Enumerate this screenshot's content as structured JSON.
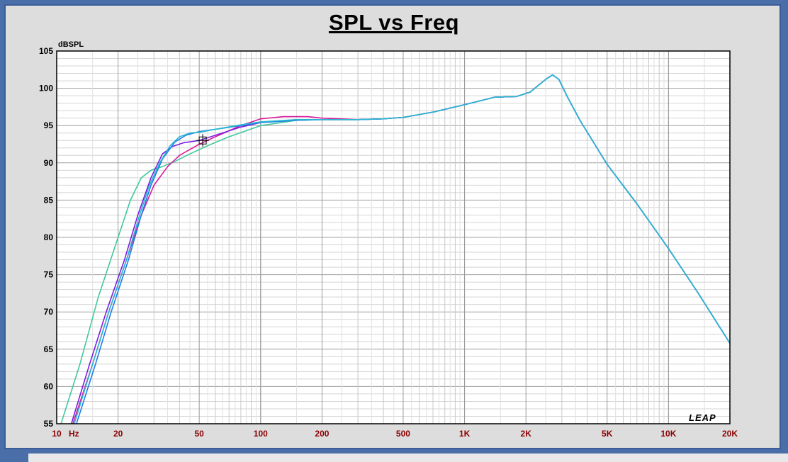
{
  "window": {
    "brand_label": "LEAP"
  },
  "chart_data": {
    "type": "line",
    "title": "SPL vs Freq",
    "ylabel": "dBSPL",
    "xlabel": "",
    "xscale": "log",
    "xlim": [
      10,
      20000
    ],
    "ylim": [
      55,
      105
    ],
    "grid": true,
    "y_ticks": [
      "105",
      "100",
      "95",
      "90",
      "85",
      "80",
      "75",
      "70",
      "65",
      "60",
      "55"
    ],
    "x_ticks": [
      {
        "value": 10,
        "label": "10"
      },
      {
        "value": 20,
        "label": "20"
      },
      {
        "value": 50,
        "label": "50"
      },
      {
        "value": 100,
        "label": "100"
      },
      {
        "value": 200,
        "label": "200"
      },
      {
        "value": 500,
        "label": "500"
      },
      {
        "value": 1000,
        "label": "1K"
      },
      {
        "value": 2000,
        "label": "2K"
      },
      {
        "value": 5000,
        "label": "5K"
      },
      {
        "value": 10000,
        "label": "10K"
      },
      {
        "value": 20000,
        "label": "20K"
      }
    ],
    "x_unit_label": "Hz",
    "series": [
      {
        "color": "#40c8a0",
        "points": [
          [
            10.5,
            55
          ],
          [
            13,
            63
          ],
          [
            16,
            72
          ],
          [
            20,
            80
          ],
          [
            23,
            85
          ],
          [
            26,
            88
          ],
          [
            29,
            89
          ],
          [
            33,
            89.5
          ],
          [
            38,
            90.2
          ],
          [
            45,
            91.2
          ],
          [
            55,
            92.3
          ],
          [
            70,
            93.5
          ],
          [
            100,
            95
          ],
          [
            150,
            95.7
          ],
          [
            200,
            95.8
          ],
          [
            300,
            95.8
          ],
          [
            400,
            95.9
          ],
          [
            500,
            96.1
          ],
          [
            700,
            96.8
          ],
          [
            1000,
            97.8
          ],
          [
            1400,
            98.8
          ],
          [
            1800,
            98.9
          ],
          [
            2100,
            99.5
          ],
          [
            2500,
            101.2
          ],
          [
            2700,
            101.8
          ],
          [
            2900,
            101.2
          ],
          [
            3200,
            98.8
          ],
          [
            3700,
            95.6
          ],
          [
            5000,
            89.8
          ],
          [
            7000,
            84.5
          ],
          [
            10000,
            78.5
          ],
          [
            14000,
            72.5
          ],
          [
            20000,
            65.8
          ]
        ]
      },
      {
        "color": "#d81b9c",
        "points": [
          [
            12,
            55
          ],
          [
            15,
            63
          ],
          [
            18,
            70
          ],
          [
            22,
            77
          ],
          [
            26,
            83
          ],
          [
            30,
            87
          ],
          [
            35,
            89.5
          ],
          [
            40,
            91
          ],
          [
            50,
            92.5
          ],
          [
            60,
            93.5
          ],
          [
            80,
            95
          ],
          [
            100,
            95.9
          ],
          [
            130,
            96.2
          ],
          [
            170,
            96.2
          ],
          [
            200,
            96
          ],
          [
            300,
            95.8
          ],
          [
            400,
            95.9
          ],
          [
            500,
            96.1
          ],
          [
            700,
            96.8
          ],
          [
            1000,
            97.8
          ],
          [
            1400,
            98.8
          ],
          [
            1800,
            98.9
          ],
          [
            2100,
            99.5
          ],
          [
            2500,
            101.2
          ],
          [
            2700,
            101.8
          ],
          [
            2900,
            101.2
          ],
          [
            3200,
            98.8
          ],
          [
            3700,
            95.6
          ],
          [
            5000,
            89.8
          ],
          [
            7000,
            84.5
          ],
          [
            10000,
            78.5
          ],
          [
            14000,
            72.5
          ],
          [
            20000,
            65.8
          ]
        ]
      },
      {
        "color": "#7a1ee0",
        "points": [
          [
            11.8,
            55
          ],
          [
            14.5,
            63
          ],
          [
            17.5,
            70
          ],
          [
            21.5,
            77
          ],
          [
            25,
            83
          ],
          [
            29,
            88
          ],
          [
            33,
            91.2
          ],
          [
            37,
            92.2
          ],
          [
            42,
            92.7
          ],
          [
            50,
            93
          ],
          [
            60,
            93.7
          ],
          [
            80,
            94.8
          ],
          [
            100,
            95.4
          ],
          [
            150,
            95.8
          ],
          [
            200,
            95.8
          ],
          [
            300,
            95.8
          ],
          [
            400,
            95.9
          ],
          [
            500,
            96.1
          ],
          [
            700,
            96.8
          ],
          [
            1000,
            97.8
          ],
          [
            1400,
            98.8
          ],
          [
            1800,
            98.9
          ],
          [
            2100,
            99.5
          ],
          [
            2500,
            101.2
          ],
          [
            2700,
            101.8
          ],
          [
            2900,
            101.2
          ],
          [
            3200,
            98.8
          ],
          [
            3700,
            95.6
          ],
          [
            5000,
            89.8
          ],
          [
            7000,
            84.5
          ],
          [
            10000,
            78.5
          ],
          [
            14000,
            72.5
          ],
          [
            20000,
            65.8
          ]
        ]
      },
      {
        "color": "#1e7ee8",
        "points": [
          [
            12.5,
            55
          ],
          [
            15.5,
            63
          ],
          [
            18.5,
            70
          ],
          [
            22.5,
            77
          ],
          [
            26,
            83
          ],
          [
            29,
            87
          ],
          [
            33,
            90.5
          ],
          [
            38,
            92.8
          ],
          [
            43,
            93.7
          ],
          [
            50,
            94.2
          ],
          [
            60,
            94.5
          ],
          [
            80,
            95
          ],
          [
            100,
            95.4
          ],
          [
            150,
            95.7
          ],
          [
            200,
            95.8
          ],
          [
            300,
            95.8
          ],
          [
            400,
            95.9
          ],
          [
            500,
            96.1
          ],
          [
            700,
            96.8
          ],
          [
            1000,
            97.8
          ],
          [
            1400,
            98.8
          ],
          [
            1800,
            98.9
          ],
          [
            2100,
            99.5
          ],
          [
            2500,
            101.2
          ],
          [
            2700,
            101.8
          ],
          [
            2900,
            101.2
          ],
          [
            3200,
            98.8
          ],
          [
            3700,
            95.6
          ],
          [
            5000,
            89.8
          ],
          [
            7000,
            84.5
          ],
          [
            10000,
            78.5
          ],
          [
            14000,
            72.5
          ],
          [
            20000,
            65.8
          ]
        ]
      },
      {
        "color": "#28b8d0",
        "points": [
          [
            12.2,
            55
          ],
          [
            15,
            63
          ],
          [
            18,
            70
          ],
          [
            22,
            77
          ],
          [
            25.5,
            83
          ],
          [
            28.5,
            87
          ],
          [
            32,
            90
          ],
          [
            36,
            92.3
          ],
          [
            40,
            93.5
          ],
          [
            45,
            94
          ],
          [
            50,
            94.1
          ],
          [
            60,
            94.5
          ],
          [
            80,
            95.1
          ],
          [
            100,
            95.5
          ],
          [
            150,
            95.8
          ],
          [
            200,
            95.8
          ],
          [
            300,
            95.8
          ],
          [
            400,
            95.9
          ],
          [
            500,
            96.1
          ],
          [
            700,
            96.8
          ],
          [
            1000,
            97.8
          ],
          [
            1400,
            98.8
          ],
          [
            1800,
            98.9
          ],
          [
            2100,
            99.5
          ],
          [
            2500,
            101.2
          ],
          [
            2700,
            101.8
          ],
          [
            2900,
            101.2
          ],
          [
            3200,
            98.8
          ],
          [
            3700,
            95.6
          ],
          [
            5000,
            89.8
          ],
          [
            7000,
            84.5
          ],
          [
            10000,
            78.5
          ],
          [
            14000,
            72.5
          ],
          [
            20000,
            65.8
          ]
        ]
      }
    ],
    "marker": {
      "x": 52,
      "y": 93
    }
  }
}
